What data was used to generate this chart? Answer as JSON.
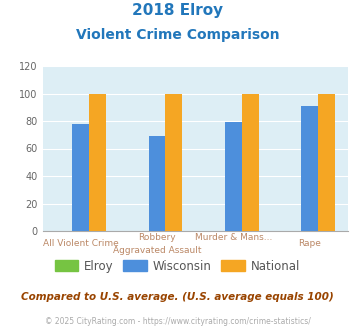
{
  "title_line1": "2018 Elroy",
  "title_line2": "Violent Crime Comparison",
  "cat_top": [
    "",
    "Robbery",
    "Murder & Mans...",
    ""
  ],
  "cat_bot": [
    "All Violent Crime",
    "Aggravated Assault",
    "",
    "Rape"
  ],
  "series": {
    "Elroy": [
      0,
      0,
      0,
      0
    ],
    "Wisconsin": [
      78,
      69,
      79,
      91
    ],
    "National": [
      100,
      100,
      100,
      100
    ]
  },
  "colors": {
    "Elroy": "#76c442",
    "Wisconsin": "#4d8fdc",
    "National": "#f5a623"
  },
  "ylim": [
    0,
    120
  ],
  "yticks": [
    0,
    20,
    40,
    60,
    80,
    100,
    120
  ],
  "title_color": "#2277bb",
  "axis_bg": "#ddeef5",
  "fig_bg": "#ffffff",
  "footnote": "Compared to U.S. average. (U.S. average equals 100)",
  "footnote2": "© 2025 CityRating.com - https://www.cityrating.com/crime-statistics/",
  "footnote_color": "#994400",
  "footnote2_color": "#aaaaaa",
  "footnote2_link_color": "#4488cc",
  "legend_text_color": "#555555",
  "xtick_color": "#bb8866"
}
